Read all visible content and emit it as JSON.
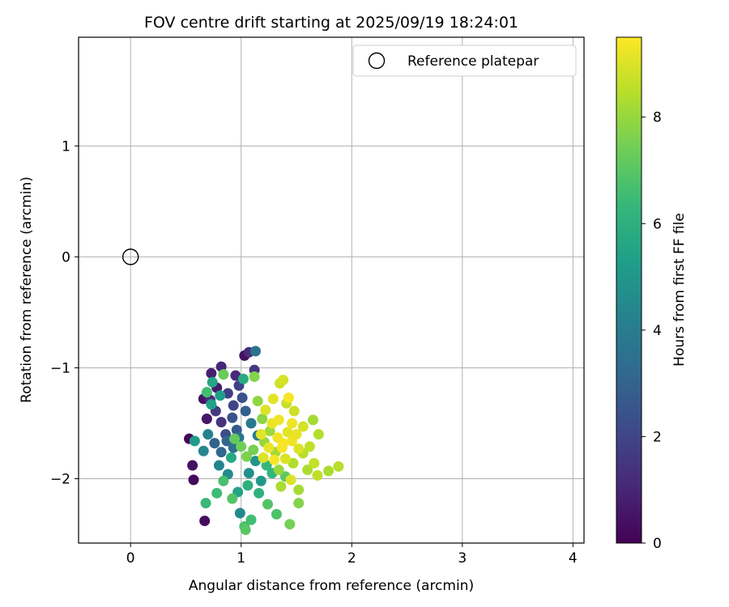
{
  "chart_data": {
    "type": "scatter",
    "title": "FOV centre drift starting at 2025/09/19 18:24:01",
    "xlabel": "Angular distance from reference (arcmin)",
    "ylabel": "Rotation from reference (arcmin)",
    "xlim": [
      -0.47,
      4.1
    ],
    "ylim": [
      -2.58,
      1.98
    ],
    "xticks": [
      0,
      1,
      2,
      3,
      4
    ],
    "yticks": [
      -2,
      -1,
      0,
      1
    ],
    "grid": true,
    "legend": {
      "position": "top-right",
      "entries": [
        "Reference platepar"
      ]
    },
    "reference_point": {
      "name": "Reference platepar",
      "x": 0,
      "y": 0
    },
    "colorbar": {
      "label": "Hours from first FF file",
      "range": [
        0,
        9.5
      ],
      "ticks": [
        0,
        2,
        4,
        6,
        8
      ],
      "colormap": [
        "#440154",
        "#482878",
        "#3e4989",
        "#31688e",
        "#26828e",
        "#1f9e89",
        "#35b779",
        "#6ece58",
        "#b5de2b",
        "#fde725"
      ]
    },
    "series": [
      {
        "name": "Hours from first FF file",
        "points": [
          {
            "x": 0.53,
            "y": -1.64,
            "c": 0.1
          },
          {
            "x": 0.57,
            "y": -2.01,
            "c": 0.2
          },
          {
            "x": 0.56,
            "y": -1.88,
            "c": 0.4
          },
          {
            "x": 0.67,
            "y": -2.38,
            "c": 0.3
          },
          {
            "x": 0.66,
            "y": -1.28,
            "c": 0.5
          },
          {
            "x": 0.69,
            "y": -1.46,
            "c": 0.6
          },
          {
            "x": 0.73,
            "y": -1.05,
            "c": 0.8
          },
          {
            "x": 0.78,
            "y": -1.18,
            "c": 0.7
          },
          {
            "x": 0.82,
            "y": -0.99,
            "c": 1.0
          },
          {
            "x": 0.95,
            "y": -1.07,
            "c": 1.1
          },
          {
            "x": 1.03,
            "y": -0.89,
            "c": 0.4
          },
          {
            "x": 1.07,
            "y": -0.86,
            "c": 1.2
          },
          {
            "x": 1.12,
            "y": -1.02,
            "c": 1.5
          },
          {
            "x": 0.72,
            "y": -1.29,
            "c": 1.3
          },
          {
            "x": 0.77,
            "y": -1.39,
            "c": 1.6
          },
          {
            "x": 0.82,
            "y": -1.49,
            "c": 1.4
          },
          {
            "x": 0.88,
            "y": -1.23,
            "c": 1.8
          },
          {
            "x": 0.93,
            "y": -1.34,
            "c": 2.0
          },
          {
            "x": 0.98,
            "y": -1.16,
            "c": 1.9
          },
          {
            "x": 0.86,
            "y": -1.6,
            "c": 2.2
          },
          {
            "x": 0.92,
            "y": -1.45,
            "c": 2.5
          },
          {
            "x": 0.96,
            "y": -1.56,
            "c": 2.7
          },
          {
            "x": 1.01,
            "y": -1.27,
            "c": 2.4
          },
          {
            "x": 1.04,
            "y": -1.39,
            "c": 2.9
          },
          {
            "x": 0.76,
            "y": -1.68,
            "c": 3.0
          },
          {
            "x": 0.82,
            "y": -1.76,
            "c": 3.2
          },
          {
            "x": 0.87,
            "y": -1.66,
            "c": 3.1
          },
          {
            "x": 0.93,
            "y": -1.72,
            "c": 3.5
          },
          {
            "x": 0.98,
            "y": -1.63,
            "c": 3.7
          },
          {
            "x": 1.13,
            "y": -0.85,
            "c": 3.6
          },
          {
            "x": 1.09,
            "y": -1.5,
            "c": 3.8
          },
          {
            "x": 1.15,
            "y": -1.61,
            "c": 4.0
          },
          {
            "x": 0.7,
            "y": -1.6,
            "c": 4.2
          },
          {
            "x": 0.66,
            "y": -1.75,
            "c": 4.4
          },
          {
            "x": 0.8,
            "y": -1.88,
            "c": 4.3
          },
          {
            "x": 0.88,
            "y": -1.96,
            "c": 4.6
          },
          {
            "x": 0.99,
            "y": -2.31,
            "c": 4.5
          },
          {
            "x": 1.07,
            "y": -1.95,
            "c": 4.8
          },
          {
            "x": 1.13,
            "y": -1.84,
            "c": 4.9
          },
          {
            "x": 1.18,
            "y": -2.02,
            "c": 5.0
          },
          {
            "x": 0.58,
            "y": -1.66,
            "c": 5.2
          },
          {
            "x": 0.73,
            "y": -1.33,
            "c": 5.4
          },
          {
            "x": 0.74,
            "y": -1.13,
            "c": 5.6
          },
          {
            "x": 0.81,
            "y": -1.25,
            "c": 5.3
          },
          {
            "x": 0.91,
            "y": -1.81,
            "c": 5.7
          },
          {
            "x": 0.97,
            "y": -2.12,
            "c": 5.5
          },
          {
            "x": 1.02,
            "y": -1.1,
            "c": 5.8
          },
          {
            "x": 1.06,
            "y": -2.06,
            "c": 6.0
          },
          {
            "x": 1.16,
            "y": -2.13,
            "c": 6.1
          },
          {
            "x": 1.23,
            "y": -1.88,
            "c": 6.3
          },
          {
            "x": 1.28,
            "y": -1.95,
            "c": 6.2
          },
          {
            "x": 0.69,
            "y": -1.22,
            "c": 6.6
          },
          {
            "x": 0.68,
            "y": -2.22,
            "c": 6.4
          },
          {
            "x": 0.78,
            "y": -2.13,
            "c": 6.5
          },
          {
            "x": 0.84,
            "y": -2.02,
            "c": 6.7
          },
          {
            "x": 0.92,
            "y": -2.18,
            "c": 6.9
          },
          {
            "x": 1.03,
            "y": -2.43,
            "c": 6.8
          },
          {
            "x": 1.04,
            "y": -2.46,
            "c": 7.0
          },
          {
            "x": 1.09,
            "y": -2.37,
            "c": 6.6
          },
          {
            "x": 1.24,
            "y": -2.23,
            "c": 6.9
          },
          {
            "x": 1.32,
            "y": -2.32,
            "c": 6.8
          },
          {
            "x": 1.4,
            "y": -1.98,
            "c": 7.1
          },
          {
            "x": 0.84,
            "y": -1.06,
            "c": 7.3
          },
          {
            "x": 0.94,
            "y": -1.64,
            "c": 7.2
          },
          {
            "x": 1.0,
            "y": -1.71,
            "c": 7.4
          },
          {
            "x": 1.05,
            "y": -1.8,
            "c": 7.6
          },
          {
            "x": 1.11,
            "y": -1.74,
            "c": 7.5
          },
          {
            "x": 1.12,
            "y": -1.08,
            "c": 7.7
          },
          {
            "x": 1.15,
            "y": -1.3,
            "c": 7.9
          },
          {
            "x": 1.19,
            "y": -1.46,
            "c": 7.8
          },
          {
            "x": 1.21,
            "y": -1.67,
            "c": 8.0
          },
          {
            "x": 1.26,
            "y": -1.57,
            "c": 8.1
          },
          {
            "x": 1.31,
            "y": -1.76,
            "c": 8.2
          },
          {
            "x": 1.34,
            "y": -1.92,
            "c": 8.0
          },
          {
            "x": 1.36,
            "y": -2.07,
            "c": 8.3
          },
          {
            "x": 1.44,
            "y": -2.41,
            "c": 7.5
          },
          {
            "x": 1.47,
            "y": -1.86,
            "c": 8.4
          },
          {
            "x": 1.52,
            "y": -2.1,
            "c": 8.2
          },
          {
            "x": 1.52,
            "y": -2.22,
            "c": 7.7
          },
          {
            "x": 1.56,
            "y": -1.77,
            "c": 8.5
          },
          {
            "x": 1.6,
            "y": -1.92,
            "c": 8.3
          },
          {
            "x": 1.62,
            "y": -1.71,
            "c": 8.6
          },
          {
            "x": 1.65,
            "y": -1.47,
            "c": 8.2
          },
          {
            "x": 1.7,
            "y": -1.6,
            "c": 8.4
          },
          {
            "x": 1.79,
            "y": -1.93,
            "c": 8.3
          },
          {
            "x": 1.88,
            "y": -1.89,
            "c": 8.5
          },
          {
            "x": 1.66,
            "y": -1.86,
            "c": 8.7
          },
          {
            "x": 1.69,
            "y": -1.97,
            "c": 8.6
          },
          {
            "x": 1.35,
            "y": -1.14,
            "c": 8.8
          },
          {
            "x": 1.38,
            "y": -1.11,
            "c": 8.9
          },
          {
            "x": 1.41,
            "y": -1.32,
            "c": 8.7
          },
          {
            "x": 1.48,
            "y": -1.39,
            "c": 8.8
          },
          {
            "x": 1.22,
            "y": -1.38,
            "c": 9.0
          },
          {
            "x": 1.28,
            "y": -1.5,
            "c": 9.2
          },
          {
            "x": 1.33,
            "y": -1.63,
            "c": 9.3
          },
          {
            "x": 1.37,
            "y": -1.72,
            "c": 9.4
          },
          {
            "x": 1.42,
            "y": -1.58,
            "c": 9.1
          },
          {
            "x": 1.46,
            "y": -1.66,
            "c": 9.3
          },
          {
            "x": 1.5,
            "y": -1.6,
            "c": 9.2
          },
          {
            "x": 1.4,
            "y": -1.82,
            "c": 9.0
          },
          {
            "x": 1.3,
            "y": -1.83,
            "c": 9.4
          },
          {
            "x": 1.25,
            "y": -1.72,
            "c": 9.2
          },
          {
            "x": 1.18,
            "y": -1.6,
            "c": 9.1
          },
          {
            "x": 1.34,
            "y": -1.47,
            "c": 9.3
          },
          {
            "x": 1.45,
            "y": -2.01,
            "c": 9.0
          },
          {
            "x": 1.43,
            "y": -1.27,
            "c": 9.4
          },
          {
            "x": 1.29,
            "y": -1.28,
            "c": 9.1
          },
          {
            "x": 1.38,
            "y": -1.68,
            "c": 9.4
          },
          {
            "x": 1.2,
            "y": -1.81,
            "c": 9.0
          },
          {
            "x": 1.56,
            "y": -1.53,
            "c": 8.9
          },
          {
            "x": 1.52,
            "y": -1.73,
            "c": 9.0
          },
          {
            "x": 1.46,
            "y": -1.5,
            "c": 9.3
          }
        ]
      }
    ]
  }
}
